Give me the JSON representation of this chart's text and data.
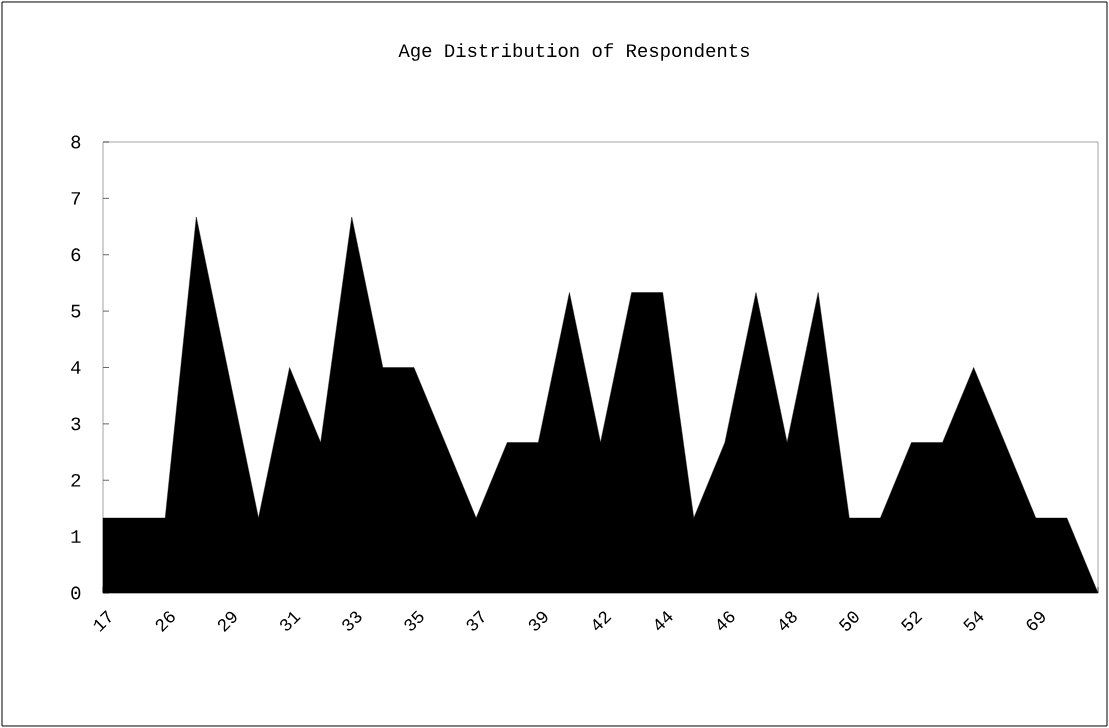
{
  "chart_data": {
    "type": "area",
    "title": "Age Distribution of Respondents",
    "categories": [
      "17",
      null,
      "26",
      null,
      "29",
      null,
      "31",
      null,
      "33",
      null,
      "35",
      null,
      "37",
      null,
      "39",
      null,
      "42",
      null,
      "44",
      null,
      "46",
      null,
      "48",
      null,
      "50",
      null,
      "52",
      null,
      "54",
      null,
      "69",
      null,
      null
    ],
    "values": [
      1.33,
      1.33,
      1.33,
      6.67,
      4.0,
      1.33,
      4.0,
      2.67,
      6.67,
      4.0,
      4.0,
      2.67,
      1.33,
      2.67,
      2.67,
      5.33,
      2.67,
      5.33,
      5.33,
      1.33,
      2.67,
      5.33,
      2.67,
      5.33,
      1.33,
      1.33,
      2.67,
      2.67,
      4.0,
      2.67,
      1.33,
      1.33,
      0
    ],
    "color": "#000000",
    "ylim": [
      0,
      8
    ],
    "yticks": [
      0,
      1,
      2,
      3,
      4,
      5,
      6,
      7,
      8
    ],
    "grid": false
  }
}
